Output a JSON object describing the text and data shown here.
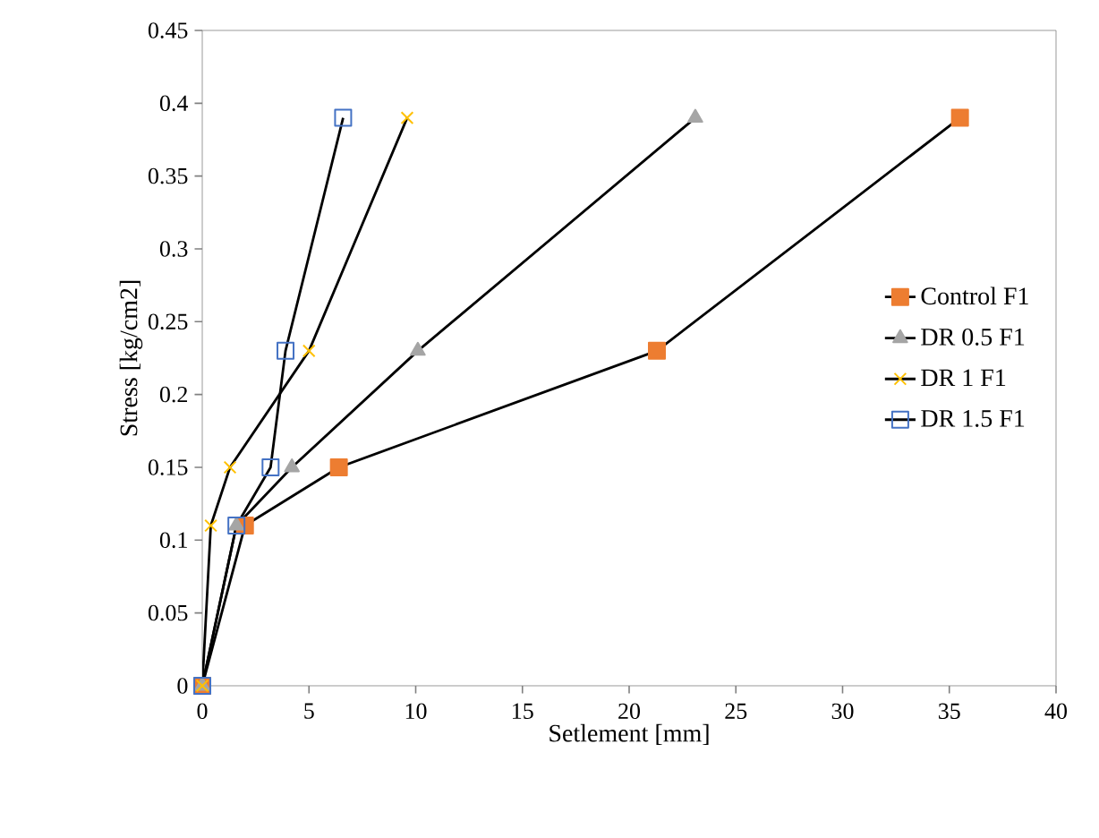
{
  "chart_data": {
    "type": "line",
    "xlabel": "Setlement [mm]",
    "ylabel": "Stress [kg/cm2]",
    "xlim": [
      0,
      40
    ],
    "ylim": [
      0,
      0.45
    ],
    "xticks": [
      0,
      5,
      10,
      15,
      20,
      25,
      30,
      35,
      40
    ],
    "yticks": [
      0,
      0.05,
      0.1,
      0.15,
      0.2,
      0.25,
      0.3,
      0.35,
      0.4,
      0.45
    ],
    "grid": false,
    "legend": "right",
    "series": [
      {
        "name": "Control  F1",
        "color": "#ed7d31",
        "marker": "square",
        "x": [
          0,
          2.0,
          6.4,
          21.3,
          35.5
        ],
        "values": [
          0,
          0.11,
          0.15,
          0.23,
          0.39
        ]
      },
      {
        "name": "DR  0.5   F1",
        "color": "#a5a5a5",
        "marker": "triangle",
        "x": [
          0,
          1.6,
          4.2,
          10.1,
          23.1
        ],
        "values": [
          0,
          0.11,
          0.15,
          0.23,
          0.39
        ]
      },
      {
        "name": "DR  1  F1",
        "color": "#ffc000",
        "marker": "cross",
        "x": [
          0,
          0.4,
          1.3,
          5.0,
          9.6
        ],
        "values": [
          0,
          0.11,
          0.15,
          0.23,
          0.39
        ]
      },
      {
        "name": "DR 1.5  F1",
        "color": "#4472c4",
        "marker": "square-open",
        "x": [
          0,
          1.6,
          3.2,
          3.9,
          6.6
        ],
        "values": [
          0,
          0.11,
          0.15,
          0.23,
          0.39
        ]
      }
    ]
  }
}
